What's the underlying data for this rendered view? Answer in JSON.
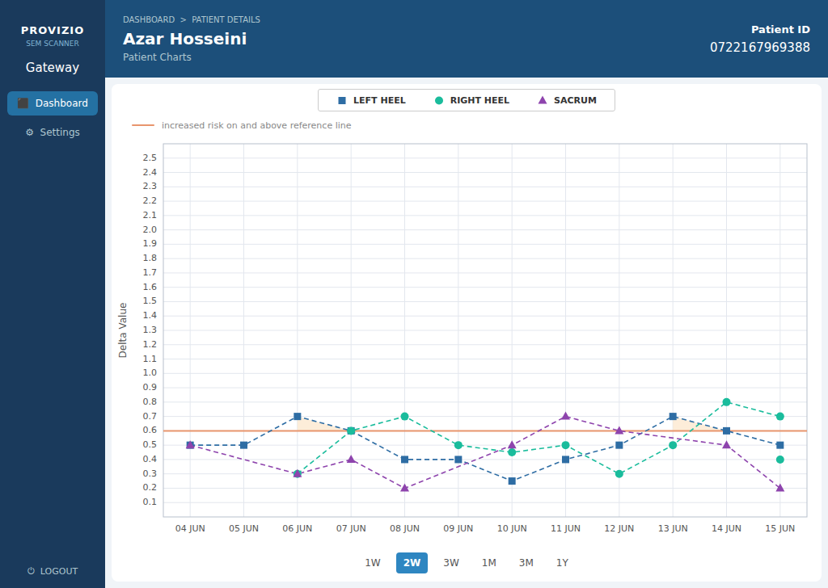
{
  "page": {
    "brand": "PROVIZIO",
    "product": "SEM SCANNER",
    "gateway": "Gateway",
    "nav": [
      {
        "label": "⬛  Dashboard",
        "active": true
      },
      {
        "label": "⚙  Settings",
        "active": false
      }
    ],
    "logout": "⏻  LOGOUT",
    "breadcrumb": "DASHBOARD  >  PATIENT DETAILS",
    "patient_name": "Azar Hosseini",
    "subtitle": "Patient Charts",
    "patient_id_label": "Patient ID",
    "patient_id": "0722167969388",
    "sidebar_color": "#1a3a5c",
    "header_color": "#1c4f7a",
    "background_color": "#f0f4f8",
    "time_buttons": [
      "1W",
      "2W",
      "3W",
      "1M",
      "3M",
      "1Y"
    ],
    "active_button": "2W",
    "active_button_color": "#2e86c1"
  },
  "chart_data": {
    "type": "line",
    "y_label": "Delta Value",
    "categories": [
      "04 JUN",
      "05 JUN",
      "06 JUN",
      "07 JUN",
      "08 JUN",
      "09 JUN",
      "10 JUN",
      "11 JUN",
      "12 JUN",
      "13 JUN",
      "14 JUN",
      "15 JUN"
    ],
    "ylim": [
      0.0,
      2.6
    ],
    "yticks": [
      0.1,
      0.2,
      0.3,
      0.4,
      0.5,
      0.6,
      0.7,
      0.8,
      0.9,
      {
        "value": 1,
        "label": "1.0"
      },
      1.1,
      1.2,
      1.3,
      1.4,
      1.5,
      1.6,
      1.7,
      1.8,
      1.9,
      {
        "value": 2,
        "label": "2.0"
      },
      2.1,
      2.2,
      2.3,
      2.4,
      2.5
    ],
    "grid": true,
    "reference_line": {
      "y": 0.6,
      "label": "increased risk on and above reference line",
      "color": "#e8956d",
      "area_color": "#fde8d0",
      "area_series": "LEFT HEEL"
    },
    "series": [
      {
        "name": "LEFT HEEL",
        "color": "#2e6da4",
        "marker": "square",
        "line_style": "dashed",
        "x": [
          "04 JUN",
          "05 JUN",
          "06 JUN",
          "07 JUN",
          "08 JUN",
          "09 JUN",
          "10 JUN",
          "11 JUN",
          "12 JUN",
          "13 JUN",
          "14 JUN",
          "15 JUN"
        ],
        "values": [
          0.5,
          0.5,
          0.7,
          0.6,
          0.4,
          0.4,
          0.25,
          0.4,
          0.5,
          0.7,
          0.6,
          0.5
        ]
      },
      {
        "name": "RIGHT HEEL",
        "color": "#1abc9c",
        "marker": "circle",
        "line_style": "dashed",
        "x": [
          "06 JUN",
          "07 JUN",
          "08 JUN",
          "09 JUN",
          "10 JUN",
          "11 JUN",
          "12 JUN",
          "13 JUN",
          "14 JUN",
          "15 JUN"
        ],
        "values": [
          0.3,
          0.6,
          0.7,
          0.5,
          0.45,
          0.5,
          0.3,
          0.5,
          0.8,
          0.7
        ]
      },
      {
        "name": "SACRUM",
        "color": "#8e44ad",
        "marker": "triangle",
        "line_style": "dashed",
        "x": [
          "04 JUN",
          "06 JUN",
          "07 JUN",
          "08 JUN",
          "10 JUN",
          "11 JUN",
          "12 JUN",
          "14 JUN",
          "15 JUN"
        ],
        "values": [
          0.5,
          0.3,
          0.4,
          0.2,
          0.5,
          0.7,
          0.6,
          0.5,
          0.2
        ]
      },
      {
        "name": "RIGHT HEEL",
        "color": "#1abc9c",
        "marker": "circle",
        "line_style": "none",
        "x": [
          "15 JUN"
        ],
        "values": [
          0.4
        ]
      }
    ]
  }
}
